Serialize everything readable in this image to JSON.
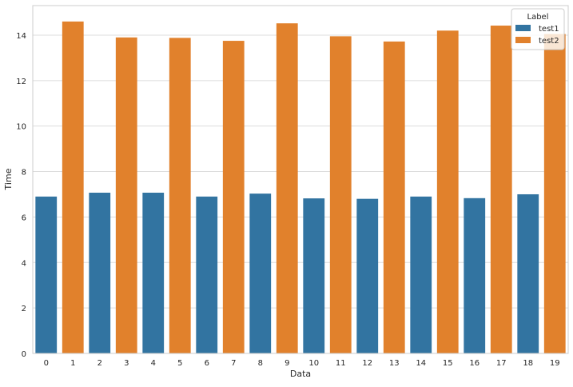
{
  "chart_data": {
    "type": "bar",
    "xlabel": "Data",
    "ylabel": "Time",
    "ylim": [
      0,
      15.3
    ],
    "yticks": [
      0,
      2,
      4,
      6,
      8,
      10,
      12,
      14
    ],
    "grid": "horizontal",
    "categories": [
      "0",
      "1",
      "2",
      "3",
      "4",
      "5",
      "6",
      "7",
      "8",
      "9",
      "10",
      "11",
      "12",
      "13",
      "14",
      "15",
      "16",
      "17",
      "18",
      "19"
    ],
    "values": [
      6.9,
      14.6,
      7.07,
      13.9,
      7.07,
      13.88,
      6.9,
      13.75,
      7.03,
      14.52,
      6.82,
      13.95,
      6.8,
      13.72,
      6.9,
      14.2,
      6.83,
      14.42,
      7.0,
      14.05
    ],
    "labels": [
      "test1",
      "test2",
      "test1",
      "test2",
      "test1",
      "test2",
      "test1",
      "test2",
      "test1",
      "test2",
      "test1",
      "test2",
      "test1",
      "test2",
      "test1",
      "test2",
      "test1",
      "test2",
      "test1",
      "test2"
    ],
    "series": [
      {
        "name": "test1",
        "color": "#3274a1"
      },
      {
        "name": "test2",
        "color": "#e1812c"
      }
    ],
    "legend": {
      "title": "Label",
      "placement": "top-right"
    }
  }
}
